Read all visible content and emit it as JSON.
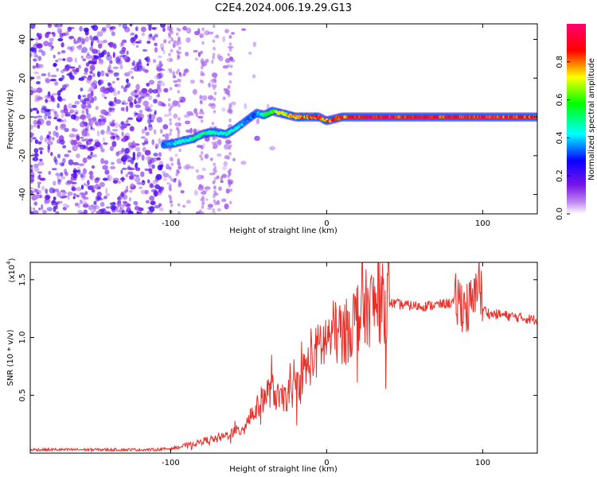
{
  "figure": {
    "title": "C2E4.2024.006.19.29.G13"
  },
  "chart_data": [
    {
      "type": "heatmap",
      "title": "C2E4.2024.006.19.29.G13",
      "xlabel": "Height of straight line (km)",
      "ylabel": "Frequency (Hz)",
      "xlim": [
        -190,
        135
      ],
      "ylim": [
        -50,
        48
      ],
      "x_ticks": [
        -100,
        0,
        100
      ],
      "y_ticks": [
        -40,
        -20,
        0,
        20,
        40
      ],
      "colorbar": {
        "label": "Normalized spectral amplitude",
        "range": [
          0,
          1
        ],
        "ticks": [
          0.0,
          0.2,
          0.4,
          0.6,
          0.8
        ],
        "colormap": [
          "#ffffff",
          "#8a2be2",
          "#0000ff",
          "#00ffff",
          "#00ff00",
          "#ffff00",
          "#ff0000",
          "#ff0080"
        ]
      },
      "signal_trace": {
        "x": [
          -105,
          -100,
          -95,
          -90,
          -85,
          -80,
          -75,
          -70,
          -65,
          -60,
          -55,
          -50,
          -45,
          -40,
          -35,
          -30,
          -25,
          -20,
          -15,
          -10,
          -5,
          0,
          5,
          10,
          20,
          40,
          60,
          80,
          100,
          120,
          135
        ],
        "freq": [
          -14,
          -14,
          -13,
          -12,
          -11,
          -9,
          -8,
          -8,
          -9,
          -7,
          -4,
          -1,
          2,
          1,
          3,
          2,
          1,
          0,
          0,
          0,
          0,
          -2,
          -1,
          0,
          0,
          0,
          0,
          0,
          0,
          0,
          0
        ],
        "amplitude": [
          0.35,
          0.4,
          0.45,
          0.45,
          0.5,
          0.5,
          0.5,
          0.45,
          0.45,
          0.5,
          0.4,
          0.35,
          0.35,
          0.5,
          0.6,
          0.7,
          0.75,
          0.8,
          0.8,
          0.85,
          0.85,
          0.8,
          0.85,
          0.85,
          0.9,
          0.9,
          0.9,
          0.9,
          0.9,
          0.9,
          0.85
        ]
      },
      "noise_region": [
        -190,
        -60
      ]
    },
    {
      "type": "line",
      "xlabel": "Height of straight line (km)",
      "ylabel": "SNR (10 * v/v)",
      "y_scale_label": "(x10",
      "y_scale_exponent": "4",
      "y_scale_suffix": ")",
      "xlim": [
        -190,
        135
      ],
      "ylim": [
        0,
        1.65
      ],
      "x_ticks": [
        -100,
        0,
        100
      ],
      "y_ticks": [
        0.5,
        1.0,
        1.5
      ],
      "series": [
        {
          "color": "#e8302a",
          "x": [
            -190,
            -160,
            -130,
            -110,
            -100,
            -95,
            -90,
            -85,
            -80,
            -75,
            -70,
            -65,
            -60,
            -55,
            -50,
            -45,
            -40,
            -35,
            -30,
            -25,
            -20,
            -15,
            -10,
            -5,
            0,
            5,
            10,
            15,
            20,
            25,
            30,
            40,
            50,
            60,
            70,
            80,
            85,
            90,
            95,
            97,
            100,
            105,
            110,
            120,
            135
          ],
          "y": [
            0.03,
            0.03,
            0.03,
            0.03,
            0.04,
            0.05,
            0.07,
            0.08,
            0.1,
            0.12,
            0.12,
            0.15,
            0.18,
            0.2,
            0.3,
            0.38,
            0.5,
            0.55,
            0.45,
            0.5,
            0.55,
            0.7,
            0.8,
            0.9,
            0.98,
            1.05,
            1.0,
            1.1,
            1.2,
            1.25,
            1.28,
            1.3,
            1.28,
            1.27,
            1.28,
            1.3,
            1.32,
            1.25,
            1.3,
            1.6,
            1.25,
            1.2,
            1.2,
            1.18,
            1.15
          ]
        }
      ]
    }
  ]
}
